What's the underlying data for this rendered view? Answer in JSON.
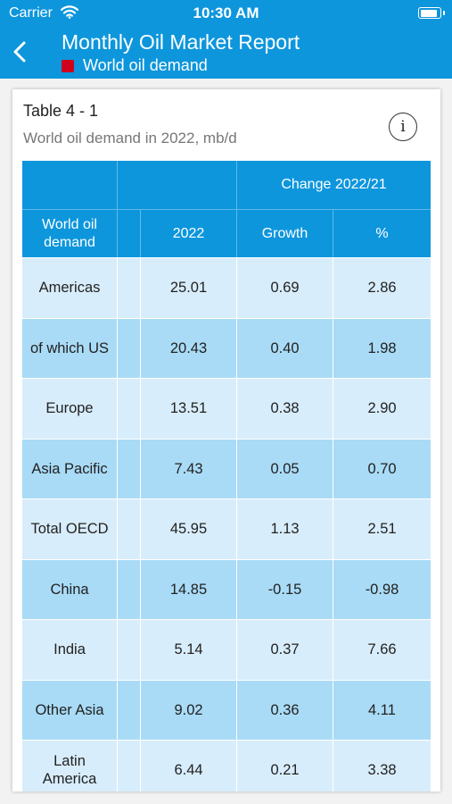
{
  "status_bar": {
    "carrier": "Carrier",
    "time": "10:30 AM"
  },
  "nav": {
    "title": "Monthly Oil Market Report",
    "subtitle": "World oil demand",
    "accent_color": "#0d96dc",
    "marker_color": "#d0021b"
  },
  "card": {
    "table_title": "Table 4 - 1",
    "table_subtitle": "World oil demand in 2022, mb/d",
    "info_glyph": "i"
  },
  "table": {
    "group_header": "Change 2022/21",
    "headers": [
      "World oil demand",
      "2022",
      "Growth",
      "%"
    ],
    "rows": [
      {
        "region": "Americas",
        "value": "25.01",
        "growth": "0.69",
        "pct": "2.86"
      },
      {
        "region": "of which US",
        "value": "20.43",
        "growth": "0.40",
        "pct": "1.98"
      },
      {
        "region": "Europe",
        "value": "13.51",
        "growth": "0.38",
        "pct": "2.90"
      },
      {
        "region": "Asia Pacific",
        "value": "7.43",
        "growth": "0.05",
        "pct": "0.70"
      },
      {
        "region": "Total OECD",
        "value": "45.95",
        "growth": "1.13",
        "pct": "2.51"
      },
      {
        "region": "China",
        "value": "14.85",
        "growth": "-0.15",
        "pct": "-0.98"
      },
      {
        "region": "India",
        "value": "5.14",
        "growth": "0.37",
        "pct": "7.66"
      },
      {
        "region": "Other Asia",
        "value": "9.02",
        "growth": "0.36",
        "pct": "4.11"
      },
      {
        "region": "Latin America",
        "value": "6.44",
        "growth": "0.21",
        "pct": "3.38"
      }
    ]
  }
}
